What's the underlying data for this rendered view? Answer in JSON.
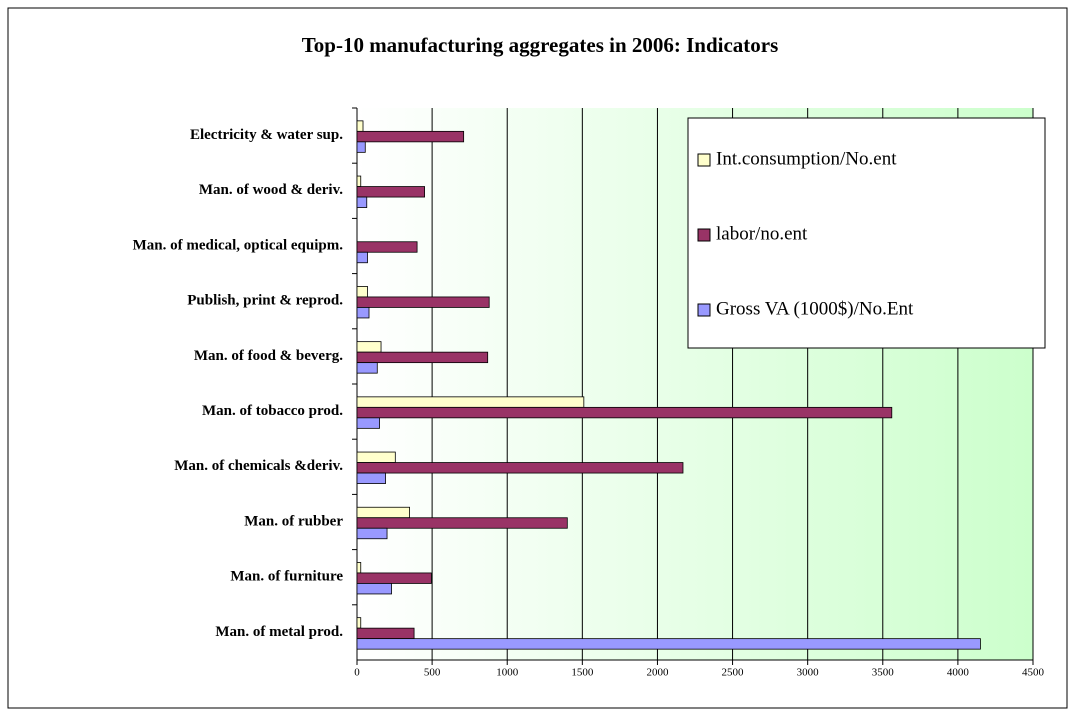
{
  "chart_data": {
    "type": "bar",
    "orientation": "horizontal",
    "title": "Top-10 manufacturing aggregates in 2006: Indicators",
    "categories": [
      "Electricity & water sup.",
      "Man. of wood & deriv.",
      "Man. of medical, optical equipm.",
      "Publish, print & reprod.",
      "Man. of food & beverg.",
      "Man. of tobacco prod.",
      "Man. of chemicals &deriv.",
      "Man. of rubber",
      "Man. of furniture",
      "Man. of metal prod."
    ],
    "series": [
      {
        "name": "Int.consumption/No.ent",
        "color": "#ffffcc",
        "values": [
          40,
          25,
          0,
          70,
          160,
          1510,
          255,
          350,
          25,
          25
        ]
      },
      {
        "name": "labor/no.ent",
        "color": "#993366",
        "values": [
          710,
          450,
          400,
          880,
          870,
          3560,
          2170,
          1400,
          495,
          380
        ]
      },
      {
        "name": "Gross VA (1000$)/No.Ent",
        "color": "#9999ff",
        "values": [
          55,
          65,
          70,
          80,
          135,
          150,
          190,
          200,
          230,
          4150
        ]
      }
    ],
    "xlim": [
      0,
      4500
    ],
    "xticks": [
      0,
      500,
      1000,
      1500,
      2000,
      2500,
      3000,
      3500,
      4000,
      4500
    ],
    "grid": true
  }
}
